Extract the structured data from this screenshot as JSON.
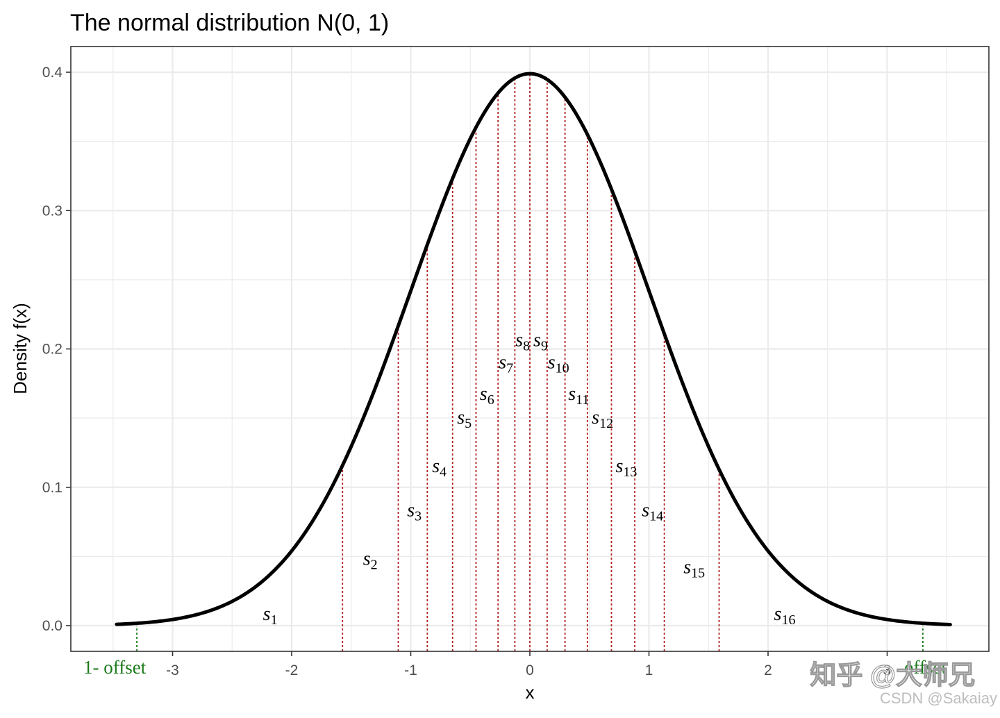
{
  "chart_data": {
    "type": "line",
    "title": "The normal distribution N(0, 1)",
    "xlabel": "x",
    "ylabel": "Density f(x)",
    "xlim": [
      -3.5,
      3.85
    ],
    "ylim": [
      -0.018,
      0.42
    ],
    "x_ticks": [
      -3,
      -2,
      -1,
      0,
      1,
      2,
      3
    ],
    "x_tick_labels": [
      "-3",
      "-2",
      "-1",
      "0",
      "1",
      "2",
      "3"
    ],
    "y_ticks": [
      0.0,
      0.1,
      0.2,
      0.3,
      0.4
    ],
    "y_tick_labels": [
      "0.0",
      "0.1",
      "0.2",
      "0.3",
      "0.4"
    ],
    "grid": true,
    "curve": {
      "function": "standard normal density",
      "mean": 0,
      "sd": 1,
      "x_range": [
        -3.47,
        3.53
      ],
      "color": "#000000"
    },
    "partition_lines": {
      "color": "#b22222",
      "x": [
        -1.573,
        -1.105,
        -0.861,
        -0.649,
        -0.452,
        -0.267,
        -0.126,
        0.0,
        0.145,
        0.295,
        0.483,
        0.685,
        0.881,
        1.129,
        1.589
      ]
    },
    "offset_lines": {
      "color": "#1a7a1a",
      "x": [
        -3.3,
        3.3
      ],
      "labels": [
        "1- offset",
        "offset"
      ]
    },
    "segment_labels": [
      {
        "base": "s",
        "sub": "1",
        "x": -2.18,
        "y": 0.004
      },
      {
        "base": "s",
        "sub": "2",
        "x": -1.34,
        "y": 0.044
      },
      {
        "base": "s",
        "sub": "3",
        "x": -0.97,
        "y": 0.079
      },
      {
        "base": "s",
        "sub": "4",
        "x": -0.76,
        "y": 0.111
      },
      {
        "base": "s",
        "sub": "5",
        "x": -0.55,
        "y": 0.146
      },
      {
        "base": "s",
        "sub": "6",
        "x": -0.36,
        "y": 0.163
      },
      {
        "base": "s",
        "sub": "7",
        "x": -0.2,
        "y": 0.186
      },
      {
        "base": "s",
        "sub": "8",
        "x": -0.06,
        "y": 0.202
      },
      {
        "base": "s",
        "sub": "9",
        "x": 0.09,
        "y": 0.202
      },
      {
        "base": "s",
        "sub": "10",
        "x": 0.24,
        "y": 0.186
      },
      {
        "base": "s",
        "sub": "11",
        "x": 0.41,
        "y": 0.163
      },
      {
        "base": "s",
        "sub": "12",
        "x": 0.61,
        "y": 0.146
      },
      {
        "base": "s",
        "sub": "13",
        "x": 0.81,
        "y": 0.111
      },
      {
        "base": "s",
        "sub": "14",
        "x": 1.03,
        "y": 0.079
      },
      {
        "base": "s",
        "sub": "15",
        "x": 1.38,
        "y": 0.038
      },
      {
        "base": "s",
        "sub": "16",
        "x": 2.14,
        "y": 0.004
      }
    ]
  },
  "watermarks": {
    "zhihu": "知乎 @大师兄",
    "csdn": "CSDN @Sakaiay"
  }
}
